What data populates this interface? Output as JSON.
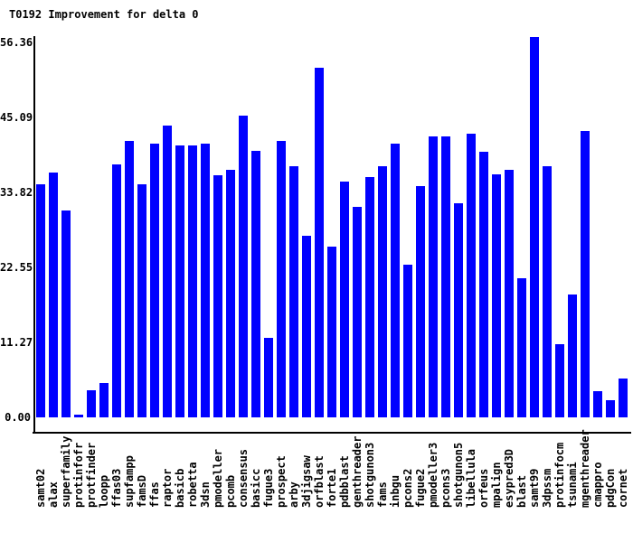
{
  "title": "T0192 Improvement for delta 0",
  "colors": {
    "bar": "#0000ff",
    "axis": "#000000",
    "background": "#ffffff",
    "text": "#000000"
  },
  "chart_data": {
    "type": "bar",
    "title": "T0192 Improvement for delta 0",
    "xlabel": "",
    "ylabel": "",
    "ylim": [
      0,
      56.36
    ],
    "grid": false,
    "legend": null,
    "xlabel_orientation": "vertical-bottom-to-top",
    "ytick_values": [
      0.0,
      11.27,
      22.55,
      33.82,
      45.09,
      56.36
    ],
    "ytick_labels": [
      "0.00",
      "11.27",
      "22.55",
      "33.82",
      "45.09",
      "56.36"
    ],
    "categories": [
      "samt02",
      "alax",
      "superfamily",
      "protinfofr",
      "protfinder",
      "loopp",
      "ffas03",
      "supfampp",
      "famsD",
      "ffas",
      "raptor",
      "basicb",
      "robetta",
      "3dsn",
      "pmodeller",
      "pcomb",
      "consensus",
      "basicc",
      "fugue3",
      "prospect",
      "arby",
      "3djigsaw",
      "orfblast",
      "forte1",
      "pdbblast",
      "genthreader",
      "shotgunon3",
      "fams",
      "inbgu",
      "pcons2",
      "fugue2",
      "pmodeller3",
      "pcons3",
      "shotgunon5",
      "libellula",
      "orfeus",
      "mpalign",
      "esypred3D",
      "blast",
      "samt99",
      "3dpssm",
      "protinfocm",
      "tsunami",
      "mgenthreader",
      "cmappro",
      "pdgCon",
      "cornet"
    ],
    "values": [
      35.0,
      36.8,
      31.1,
      0.4,
      4.1,
      5.1,
      38.0,
      41.6,
      35.1,
      41.1,
      43.8,
      40.9,
      40.9,
      41.2,
      36.4,
      37.2,
      45.3,
      40.1,
      12.0,
      41.5,
      37.7,
      27.3,
      52.5,
      25.7,
      35.4,
      31.7,
      36.1,
      37.8,
      41.1,
      23.0,
      34.8,
      42.2,
      42.2,
      32.2,
      42.7,
      39.9,
      36.5,
      37.2,
      20.9,
      57.2,
      37.8,
      11.0,
      18.5,
      43.0,
      3.9,
      2.6,
      5.8
    ]
  }
}
